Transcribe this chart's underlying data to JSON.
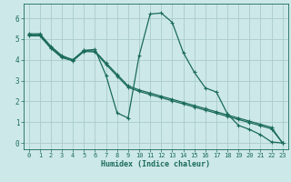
{
  "xlabel": "Humidex (Indice chaleur)",
  "background_color": "#cde8e8",
  "grid_color": "#aacccc",
  "line_color": "#1a6b5a",
  "spine_color": "#1a6b5a",
  "xlim": [
    -0.5,
    23.5
  ],
  "ylim": [
    -0.3,
    6.7
  ],
  "xticks": [
    0,
    1,
    2,
    3,
    4,
    5,
    6,
    7,
    8,
    9,
    10,
    11,
    12,
    13,
    14,
    15,
    16,
    17,
    18,
    19,
    20,
    21,
    22,
    23
  ],
  "yticks": [
    0,
    1,
    2,
    3,
    4,
    5,
    6
  ],
  "line1_x": [
    0,
    1,
    2,
    3,
    4,
    5,
    6,
    7,
    8,
    9,
    10,
    11,
    12,
    13,
    14,
    15,
    16,
    17,
    18,
    19,
    20,
    21,
    22,
    23
  ],
  "line1_y": [
    5.25,
    5.25,
    4.65,
    4.2,
    4.0,
    4.45,
    4.5,
    3.25,
    1.45,
    1.2,
    4.2,
    6.2,
    6.25,
    5.8,
    4.35,
    3.4,
    2.65,
    2.45,
    1.4,
    0.85,
    0.65,
    0.4,
    0.05,
    0.0
  ],
  "line2_x": [
    0,
    1,
    2,
    3,
    4,
    5,
    6,
    7,
    8,
    9,
    10,
    11,
    12,
    13,
    14,
    15,
    16,
    17,
    18,
    19,
    20,
    21,
    22,
    23
  ],
  "line2_y": [
    5.2,
    5.2,
    4.6,
    4.15,
    4.0,
    4.45,
    4.42,
    3.85,
    3.3,
    2.75,
    2.55,
    2.4,
    2.25,
    2.1,
    1.95,
    1.8,
    1.65,
    1.5,
    1.35,
    1.2,
    1.05,
    0.9,
    0.75,
    0.0
  ],
  "line3_x": [
    0,
    1,
    2,
    3,
    4,
    5,
    6,
    7,
    8,
    9,
    10,
    11,
    12,
    13,
    14,
    15,
    16,
    17,
    18,
    19,
    20,
    21,
    22,
    23
  ],
  "line3_y": [
    5.15,
    5.15,
    4.55,
    4.1,
    3.95,
    4.4,
    4.38,
    3.78,
    3.22,
    2.68,
    2.48,
    2.33,
    2.18,
    2.03,
    1.88,
    1.73,
    1.58,
    1.43,
    1.28,
    1.13,
    0.98,
    0.83,
    0.68,
    0.0
  ]
}
